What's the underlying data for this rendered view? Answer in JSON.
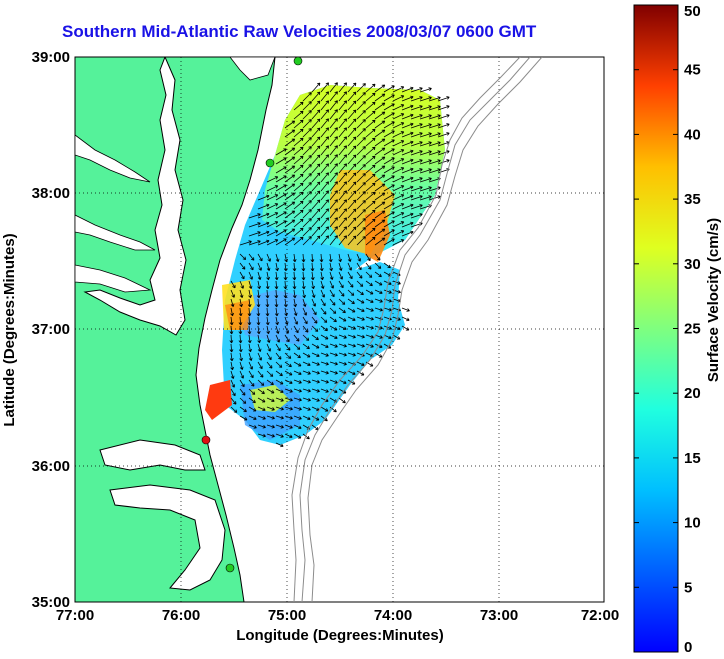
{
  "title": "Southern Mid-Atlantic Raw Velocities 2008/03/07 0600 GMT",
  "xlabel": "Longitude (Degrees:Minutes)",
  "ylabel": "Latitude (Degrees:Minutes)",
  "x_ticks": [
    "77:00",
    "76:00",
    "75:00",
    "74:00",
    "73:00",
    "72:00"
  ],
  "y_ticks": [
    "39:00",
    "38:00",
    "37:00",
    "36:00",
    "35:00"
  ],
  "colorbar": {
    "label": "Surface Velocity (cm/s)",
    "ticks": [
      "0",
      "5",
      "10",
      "15",
      "20",
      "25",
      "30",
      "35",
      "40",
      "45",
      "50"
    ],
    "range": [
      0,
      50
    ],
    "colormap": "jet"
  },
  "colors": {
    "title": "#1a12e6",
    "land": "#55f29a",
    "coastline": "#000000",
    "bathymetry": "#8c8c8c",
    "grid": "#000000",
    "station_marker": "#22cc22",
    "station_marker_red": "#dd1111"
  }
}
